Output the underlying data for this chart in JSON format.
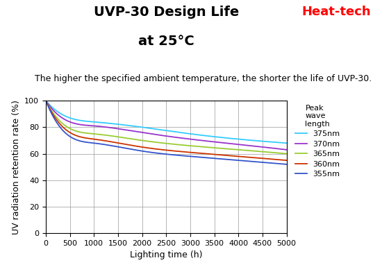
{
  "title_line1": "UVP-30 Design Life",
  "title_line2": "at 25°C",
  "subtitle": "The higher the specified ambient temperature, the shorter the life of UVP-30.",
  "xlabel": "Lighting time (h)",
  "ylabel": "UV radiation retention rate (%)",
  "brand": "Heat-tech",
  "xlim": [
    0,
    5000
  ],
  "ylim": [
    0,
    100
  ],
  "xticks": [
    0,
    500,
    1000,
    1500,
    2000,
    2500,
    3000,
    3500,
    4000,
    4500,
    5000
  ],
  "yticks": [
    0,
    20,
    40,
    60,
    80,
    100
  ],
  "legend_title": "Peak\nwave\nlength",
  "series": [
    {
      "label": "375nm",
      "color": "#33CCFF",
      "y500": 87,
      "y1000": 84,
      "y2000": 80,
      "y3000": 75,
      "y4000": 71,
      "y5000": 68
    },
    {
      "label": "370nm",
      "color": "#9933CC",
      "y500": 84,
      "y1000": 81,
      "y2000": 76,
      "y3000": 71,
      "y4000": 67,
      "y5000": 63
    },
    {
      "label": "365nm",
      "color": "#99CC33",
      "y500": 79,
      "y1000": 75,
      "y2000": 70,
      "y3000": 66,
      "y4000": 63,
      "y5000": 60
    },
    {
      "label": "360nm",
      "color": "#CC3300",
      "y500": 76,
      "y1000": 71,
      "y2000": 65,
      "y3000": 61,
      "y4000": 58,
      "y5000": 55
    },
    {
      "label": "355nm",
      "color": "#3355CC",
      "y500": 73,
      "y1000": 68,
      "y2000": 62,
      "y3000": 58,
      "y4000": 55,
      "y5000": 52
    }
  ],
  "background_color": "#ffffff",
  "grid_color": "#999999",
  "title_fontsize": 14,
  "subtitle_fontsize": 9,
  "axis_label_fontsize": 9,
  "tick_fontsize": 8,
  "legend_fontsize": 8
}
